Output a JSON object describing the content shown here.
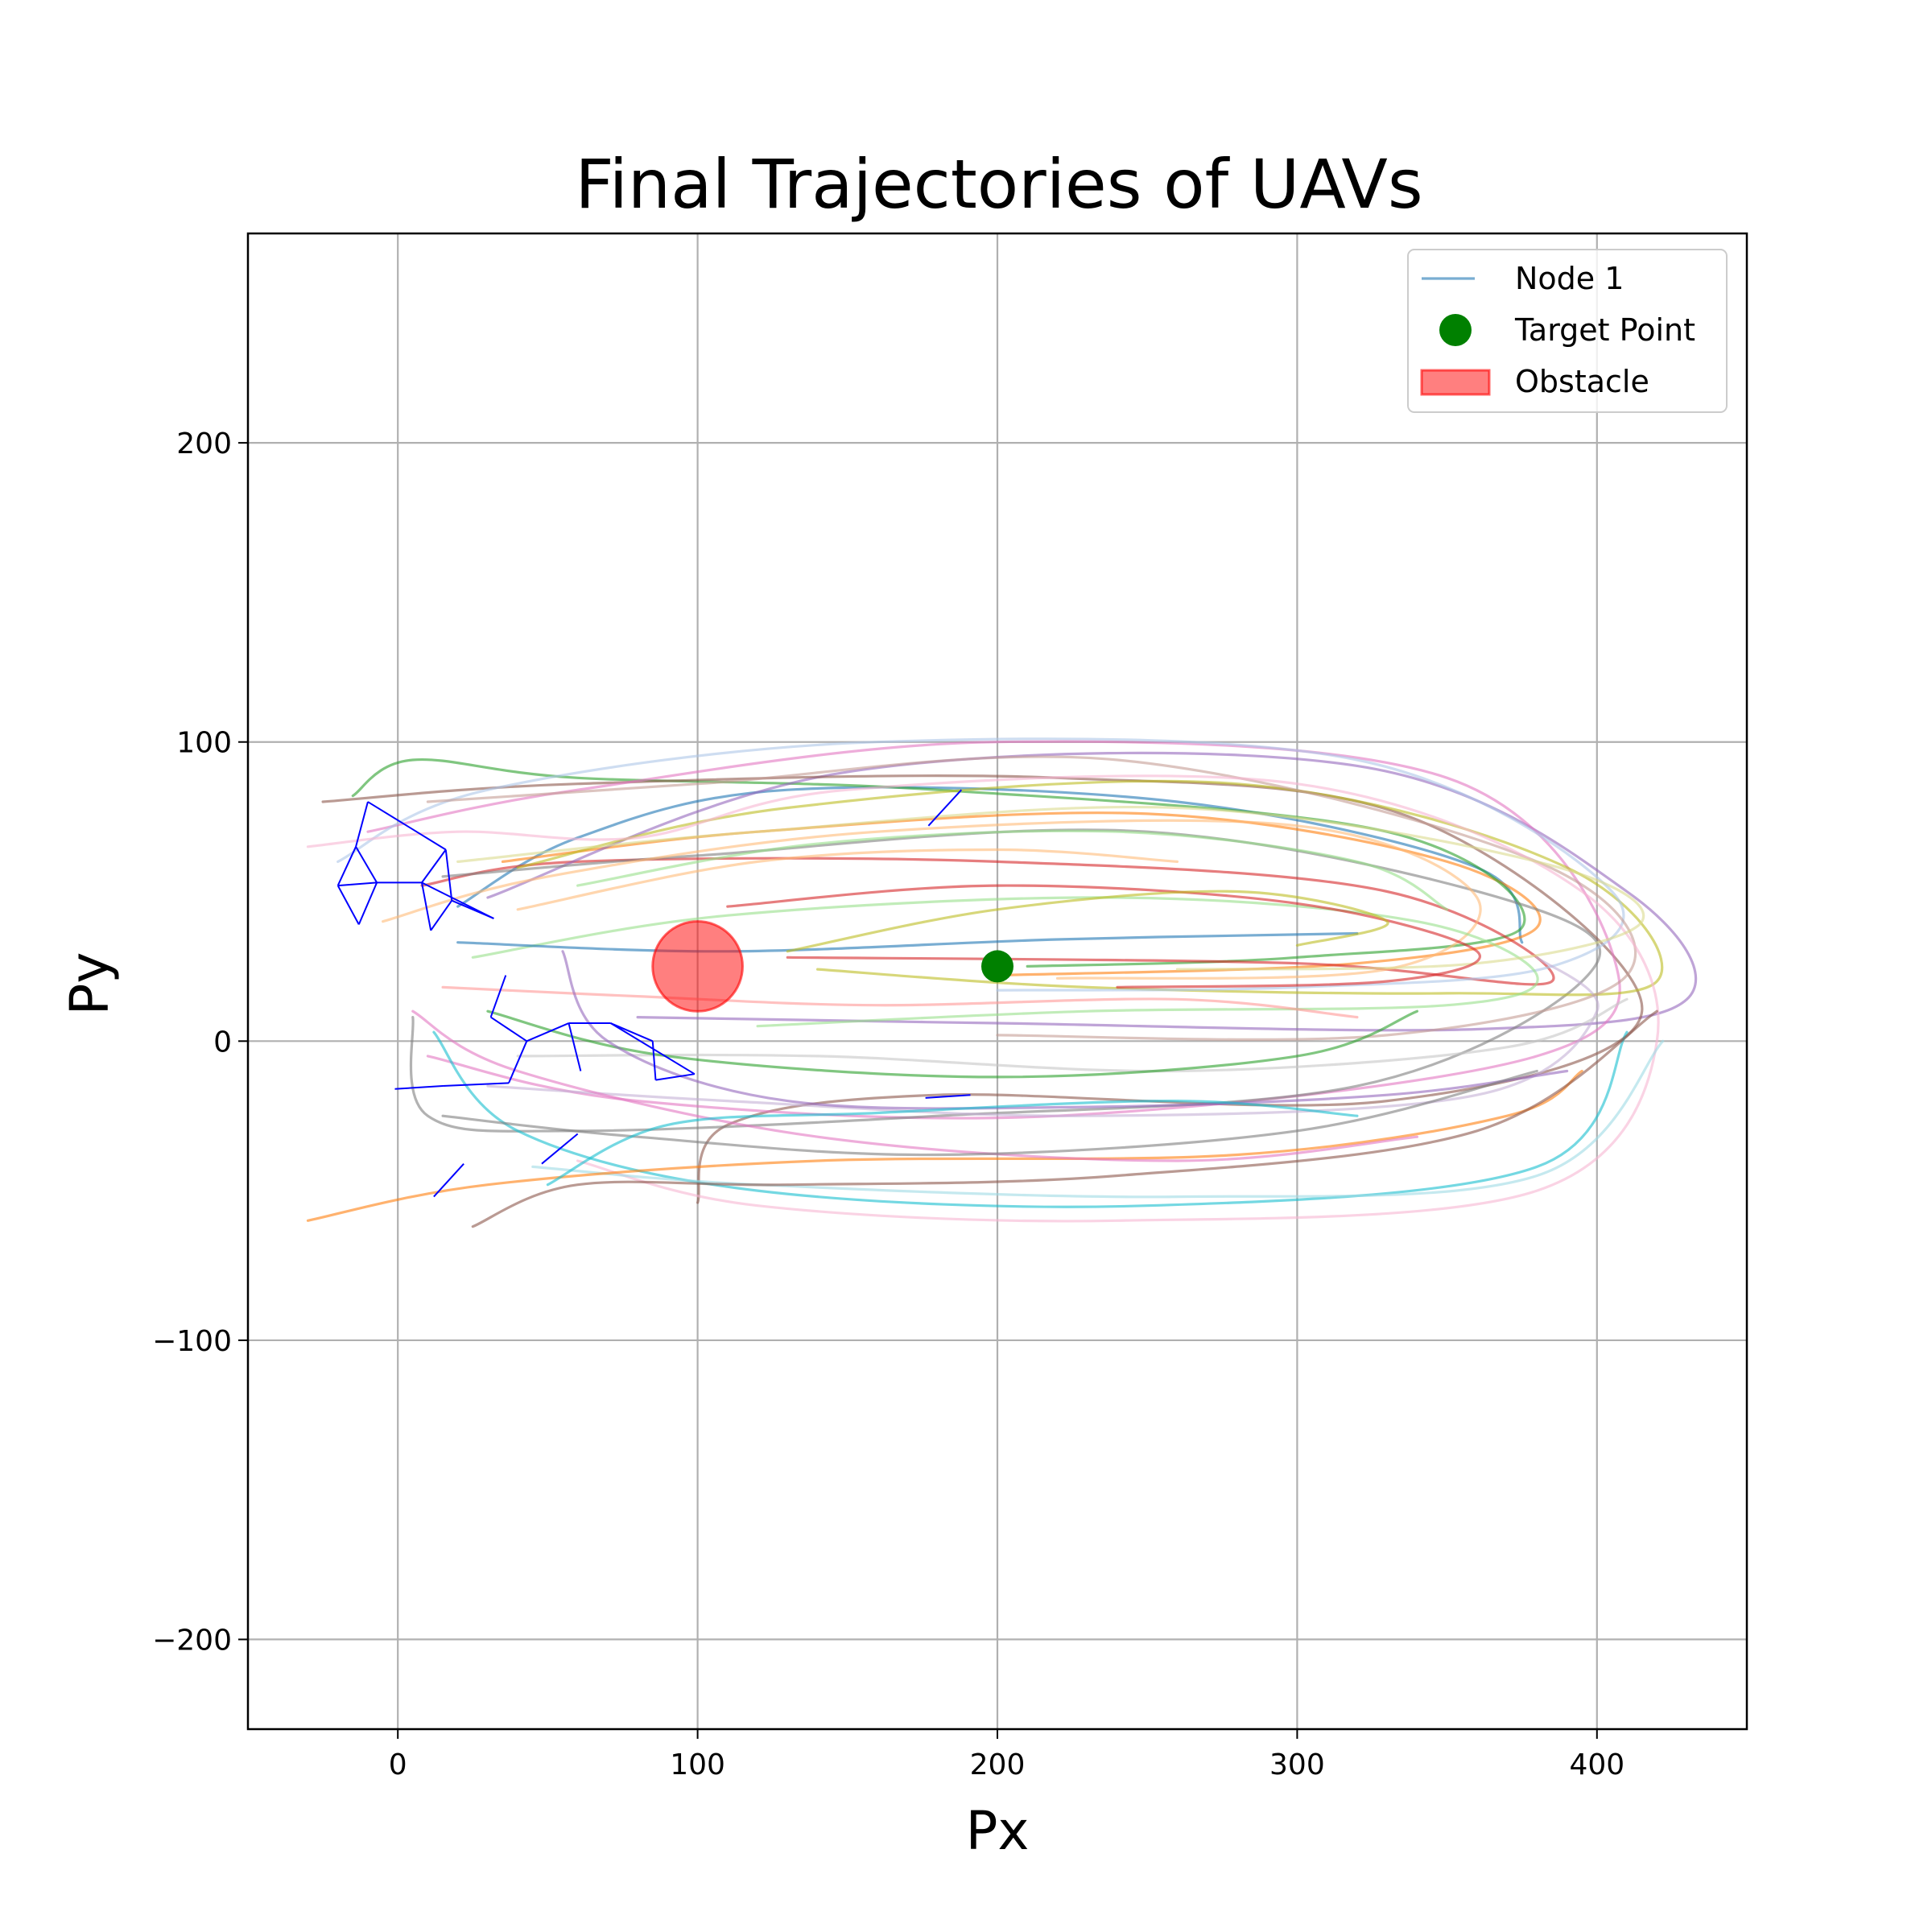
{
  "chart_data": {
    "type": "line",
    "title": "Final Trajectories of UAVs",
    "xlabel": "Px",
    "ylabel": "Py",
    "xlim": [
      -50,
      450
    ],
    "ylim": [
      -230,
      270
    ],
    "xticks": [
      0,
      100,
      200,
      300,
      400
    ],
    "yticks": [
      -200,
      -100,
      0,
      100,
      200
    ],
    "x_tick_labels": [
      "0",
      "100",
      "200",
      "300",
      "400"
    ],
    "y_tick_labels": [
      "−200",
      "−100",
      "0",
      "100",
      "200"
    ],
    "grid": true,
    "legend_position": "top-right",
    "legend": [
      {
        "label": "Node 1",
        "kind": "line",
        "color": "#1f77b4"
      },
      {
        "label": "Target Point",
        "kind": "marker",
        "color": "#008000"
      },
      {
        "label": "Obstacle",
        "kind": "patch",
        "color": "#ff0000"
      }
    ],
    "target_point": {
      "x": 200,
      "y": 25,
      "color": "#008000"
    },
    "obstacle": {
      "x": 100,
      "y": 25,
      "radius": 15,
      "color": "#ff0000",
      "alpha": 0.5
    },
    "palette": [
      "#1f77b4",
      "#ff7f0e",
      "#2ca02c",
      "#d62728",
      "#9467bd",
      "#8c564b",
      "#e377c2",
      "#7f7f7f",
      "#bcbd22",
      "#17becf",
      "#aec7e8",
      "#ffbb78",
      "#98df8a",
      "#ff9896",
      "#c5b0d5",
      "#c49c94",
      "#f7b6d2",
      "#c7c7c7",
      "#dbdb8d",
      "#9edae5"
    ],
    "series": [
      {
        "color": "#1f77b4",
        "points": [
          [
            20,
            45
          ],
          [
            60,
            68
          ],
          [
            130,
            84
          ],
          [
            260,
            80
          ],
          [
            360,
            58
          ],
          [
            375,
            33
          ]
        ]
      },
      {
        "color": "#ff7f0e",
        "points": [
          [
            35,
            60
          ],
          [
            120,
            70
          ],
          [
            250,
            76
          ],
          [
            350,
            60
          ],
          [
            380,
            38
          ],
          [
            320,
            26
          ],
          [
            200,
            22
          ]
        ]
      },
      {
        "color": "#2ca02c",
        "points": [
          [
            -15,
            82
          ],
          [
            5,
            94
          ],
          [
            60,
            88
          ],
          [
            180,
            84
          ],
          [
            330,
            70
          ],
          [
            375,
            38
          ],
          [
            300,
            28
          ],
          [
            210,
            25
          ]
        ]
      },
      {
        "color": "#d62728",
        "points": [
          [
            8,
            52
          ],
          [
            60,
            60
          ],
          [
            200,
            60
          ],
          [
            330,
            50
          ],
          [
            385,
            20
          ],
          [
            300,
            26
          ],
          [
            130,
            28
          ]
        ]
      },
      {
        "color": "#9467bd",
        "points": [
          [
            30,
            48
          ],
          [
            150,
            90
          ],
          [
            320,
            92
          ],
          [
            410,
            50
          ],
          [
            430,
            14
          ],
          [
            360,
            4
          ],
          [
            200,
            6
          ],
          [
            80,
            8
          ]
        ]
      },
      {
        "color": "#8c564b",
        "points": [
          [
            -25,
            80
          ],
          [
            60,
            86
          ],
          [
            220,
            88
          ],
          [
            340,
            74
          ],
          [
            415,
            10
          ],
          [
            330,
            -20
          ],
          [
            180,
            -18
          ],
          [
            110,
            -28
          ],
          [
            100,
            -54
          ]
        ]
      },
      {
        "color": "#e377c2",
        "points": [
          [
            -10,
            70
          ],
          [
            60,
            84
          ],
          [
            200,
            100
          ],
          [
            350,
            88
          ],
          [
            405,
            30
          ],
          [
            380,
            -5
          ],
          [
            220,
            -25
          ],
          [
            80,
            -20
          ],
          [
            10,
            -5
          ]
        ]
      },
      {
        "color": "#7f7f7f",
        "points": [
          [
            15,
            55
          ],
          [
            100,
            62
          ],
          [
            250,
            70
          ],
          [
            380,
            44
          ],
          [
            395,
            20
          ],
          [
            320,
            -15
          ],
          [
            180,
            -25
          ],
          [
            60,
            -30
          ],
          [
            10,
            -25
          ],
          [
            5,
            8
          ]
        ]
      },
      {
        "color": "#bcbd22",
        "points": [
          [
            40,
            58
          ],
          [
            130,
            78
          ],
          [
            280,
            86
          ],
          [
            390,
            58
          ],
          [
            420,
            20
          ],
          [
            350,
            16
          ],
          [
            230,
            18
          ],
          [
            140,
            24
          ]
        ]
      },
      {
        "color": "#17becf",
        "points": [
          [
            12,
            3
          ],
          [
            40,
            -30
          ],
          [
            120,
            -50
          ],
          [
            250,
            -55
          ],
          [
            380,
            -42
          ],
          [
            410,
            3
          ]
        ]
      },
      {
        "color": "#aec7e8",
        "points": [
          [
            -20,
            60
          ],
          [
            30,
            84
          ],
          [
            160,
            100
          ],
          [
            320,
            94
          ],
          [
            405,
            50
          ],
          [
            385,
            25
          ],
          [
            300,
            18
          ],
          [
            200,
            17
          ]
        ]
      },
      {
        "color": "#ffbb78",
        "points": [
          [
            -5,
            40
          ],
          [
            50,
            55
          ],
          [
            160,
            70
          ],
          [
            300,
            72
          ],
          [
            360,
            48
          ],
          [
            330,
            24
          ],
          [
            220,
            21
          ]
        ]
      },
      {
        "color": "#98df8a",
        "points": [
          [
            25,
            28
          ],
          [
            110,
            42
          ],
          [
            240,
            48
          ],
          [
            340,
            40
          ],
          [
            380,
            22
          ],
          [
            350,
            12
          ],
          [
            230,
            10
          ],
          [
            120,
            5
          ]
        ]
      },
      {
        "color": "#ff9896",
        "points": [
          [
            15,
            18
          ],
          [
            80,
            15
          ],
          [
            160,
            12
          ],
          [
            260,
            14
          ],
          [
            320,
            8
          ]
        ]
      },
      {
        "color": "#c5b0d5",
        "points": [
          [
            30,
            -15
          ],
          [
            110,
            -20
          ],
          [
            230,
            -25
          ],
          [
            360,
            -18
          ],
          [
            400,
            10
          ],
          [
            380,
            28
          ]
        ]
      },
      {
        "color": "#c49c94",
        "points": [
          [
            10,
            80
          ],
          [
            100,
            86
          ],
          [
            240,
            94
          ],
          [
            380,
            60
          ],
          [
            410,
            22
          ],
          [
            330,
            2
          ],
          [
            200,
            2
          ]
        ]
      },
      {
        "color": "#f7b6d2",
        "points": [
          [
            -30,
            65
          ],
          [
            20,
            70
          ],
          [
            80,
            68
          ],
          [
            150,
            84
          ],
          [
            300,
            86
          ],
          [
            395,
            50
          ],
          [
            420,
            0
          ],
          [
            380,
            -50
          ],
          [
            240,
            -60
          ],
          [
            120,
            -55
          ],
          [
            60,
            -40
          ]
        ]
      },
      {
        "color": "#c7c7c7",
        "points": [
          [
            40,
            -5
          ],
          [
            140,
            -5
          ],
          [
            260,
            -10
          ],
          [
            370,
            -2
          ],
          [
            410,
            14
          ]
        ]
      },
      {
        "color": "#dbdb8d",
        "points": [
          [
            20,
            60
          ],
          [
            120,
            70
          ],
          [
            260,
            78
          ],
          [
            380,
            60
          ],
          [
            415,
            40
          ],
          [
            360,
            26
          ],
          [
            260,
            24
          ]
        ]
      },
      {
        "color": "#9edae5",
        "points": [
          [
            45,
            -42
          ],
          [
            120,
            -48
          ],
          [
            260,
            -52
          ],
          [
            380,
            -45
          ],
          [
            422,
            0
          ]
        ]
      },
      {
        "color": "#1f77b4",
        "points": [
          [
            20,
            33
          ],
          [
            110,
            30
          ],
          [
            220,
            34
          ],
          [
            320,
            36
          ]
        ]
      },
      {
        "color": "#ff7f0e",
        "points": [
          [
            -30,
            -60
          ],
          [
            30,
            -48
          ],
          [
            140,
            -40
          ],
          [
            280,
            -38
          ],
          [
            370,
            -25
          ],
          [
            395,
            -10
          ]
        ]
      },
      {
        "color": "#2ca02c",
        "points": [
          [
            30,
            10
          ],
          [
            90,
            -5
          ],
          [
            200,
            -12
          ],
          [
            300,
            -5
          ],
          [
            340,
            10
          ]
        ]
      },
      {
        "color": "#d62728",
        "points": [
          [
            110,
            45
          ],
          [
            200,
            52
          ],
          [
            300,
            46
          ],
          [
            360,
            30
          ],
          [
            330,
            20
          ],
          [
            240,
            18
          ]
        ]
      },
      {
        "color": "#9467bd",
        "points": [
          [
            55,
            30
          ],
          [
            70,
            0
          ],
          [
            130,
            -20
          ],
          [
            230,
            -22
          ],
          [
            330,
            -18
          ],
          [
            390,
            -10
          ]
        ]
      },
      {
        "color": "#8c564b",
        "points": [
          [
            25,
            -62
          ],
          [
            60,
            -48
          ],
          [
            130,
            -48
          ],
          [
            240,
            -45
          ],
          [
            360,
            -30
          ],
          [
            420,
            10
          ]
        ]
      },
      {
        "color": "#e377c2",
        "points": [
          [
            5,
            10
          ],
          [
            40,
            -10
          ],
          [
            140,
            -32
          ],
          [
            260,
            -40
          ],
          [
            340,
            -32
          ]
        ]
      },
      {
        "color": "#7f7f7f",
        "points": [
          [
            15,
            -25
          ],
          [
            80,
            -32
          ],
          [
            180,
            -38
          ],
          [
            300,
            -30
          ],
          [
            380,
            -10
          ]
        ]
      },
      {
        "color": "#bcbd22",
        "points": [
          [
            130,
            30
          ],
          [
            200,
            44
          ],
          [
            280,
            50
          ],
          [
            330,
            40
          ],
          [
            300,
            32
          ]
        ]
      },
      {
        "color": "#17becf",
        "points": [
          [
            50,
            -48
          ],
          [
            90,
            -28
          ],
          [
            160,
            -24
          ],
          [
            260,
            -20
          ],
          [
            320,
            -25
          ]
        ]
      },
      {
        "color": "#ffbb78",
        "points": [
          [
            40,
            44
          ],
          [
            120,
            60
          ],
          [
            200,
            64
          ],
          [
            260,
            60
          ]
        ]
      },
      {
        "color": "#98df8a",
        "points": [
          [
            60,
            52
          ],
          [
            140,
            66
          ],
          [
            240,
            70
          ],
          [
            320,
            60
          ],
          [
            350,
            44
          ]
        ]
      }
    ],
    "formation_links": [
      [
        [
          -10,
          80
        ],
        [
          -14,
          65
        ]
      ],
      [
        [
          -14,
          65
        ],
        [
          -20,
          52
        ]
      ],
      [
        [
          -20,
          52
        ],
        [
          -7,
          53
        ]
      ],
      [
        [
          -14,
          65
        ],
        [
          -7,
          53
        ]
      ],
      [
        [
          -10,
          80
        ],
        [
          16,
          64
        ]
      ],
      [
        [
          -20,
          52
        ],
        [
          -13,
          39
        ]
      ],
      [
        [
          -13,
          39
        ],
        [
          -7,
          53
        ]
      ],
      [
        [
          -7,
          53
        ],
        [
          8,
          53
        ]
      ],
      [
        [
          8,
          53
        ],
        [
          16,
          64
        ]
      ],
      [
        [
          16,
          64
        ],
        [
          18,
          47
        ]
      ],
      [
        [
          8,
          53
        ],
        [
          11,
          37
        ]
      ],
      [
        [
          11,
          37
        ],
        [
          18,
          47
        ]
      ],
      [
        [
          18,
          47
        ],
        [
          32,
          41
        ]
      ],
      [
        [
          8,
          53
        ],
        [
          32,
          41
        ]
      ],
      [
        [
          -1,
          -16
        ],
        [
          15,
          -15
        ]
      ],
      [
        [
          15,
          -15
        ],
        [
          37,
          -14
        ]
      ],
      [
        [
          37,
          -14
        ],
        [
          43,
          0
        ]
      ],
      [
        [
          43,
          0
        ],
        [
          31,
          8
        ]
      ],
      [
        [
          31,
          8
        ],
        [
          36,
          22
        ]
      ],
      [
        [
          43,
          0
        ],
        [
          57,
          6
        ]
      ],
      [
        [
          57,
          6
        ],
        [
          61,
          -10
        ]
      ],
      [
        [
          57,
          6
        ],
        [
          71,
          6
        ]
      ],
      [
        [
          71,
          6
        ],
        [
          85,
          0
        ]
      ],
      [
        [
          85,
          0
        ],
        [
          86,
          -13
        ]
      ],
      [
        [
          86,
          -13
        ],
        [
          99,
          -11
        ]
      ],
      [
        [
          71,
          6
        ],
        [
          99,
          -11
        ]
      ],
      [
        [
          177,
          72
        ],
        [
          188,
          84
        ]
      ],
      [
        [
          176,
          -19
        ],
        [
          191,
          -18
        ]
      ],
      [
        [
          48,
          -41
        ],
        [
          60,
          -31
        ]
      ],
      [
        [
          12,
          -52
        ],
        [
          22,
          -41
        ]
      ]
    ]
  }
}
